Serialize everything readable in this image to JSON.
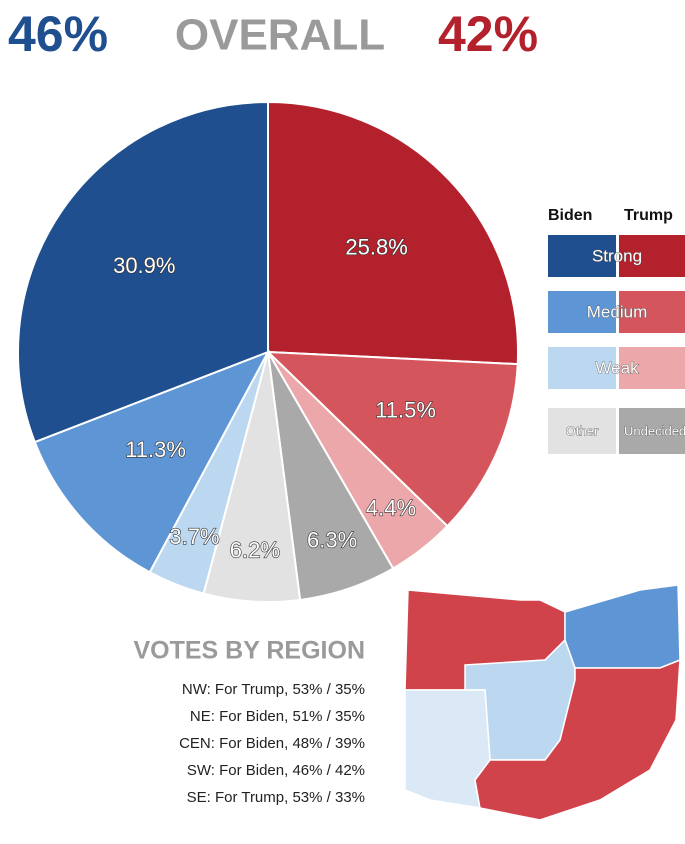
{
  "header": {
    "left": "46%",
    "title": "OVERALL",
    "right": "42%"
  },
  "chart_data": {
    "type": "pie",
    "values": [
      25.8,
      11.5,
      4.4,
      6.3,
      6.2,
      3.7,
      11.3,
      30.9
    ],
    "value_labels": [
      "25.8%",
      "11.5%",
      "4.4%",
      "6.3%",
      "6.2%",
      "3.7%",
      "11.3%",
      "30.9%"
    ],
    "colors": [
      "#b3222c",
      "#d4555b",
      "#eba7a9",
      "#a9a9a9",
      "#e2e2e2",
      "#bcd7f0",
      "#5d95d5",
      "#1f4f8f"
    ]
  },
  "legend": {
    "columns": [
      "Biden",
      "Trump"
    ],
    "rows": [
      "Strong",
      "Medium",
      "Weak"
    ],
    "other": "Other",
    "undecided": "Undecided"
  },
  "regions": {
    "title": "VOTES BY REGION",
    "items": [
      "NW: For Trump, 53% / 35%",
      "NE: For Biden, 51% / 35%",
      "CEN: For Biden, 48% / 39%",
      "SW: For Biden, 46% / 42%",
      "SE: For Trump, 53% / 33%"
    ]
  }
}
